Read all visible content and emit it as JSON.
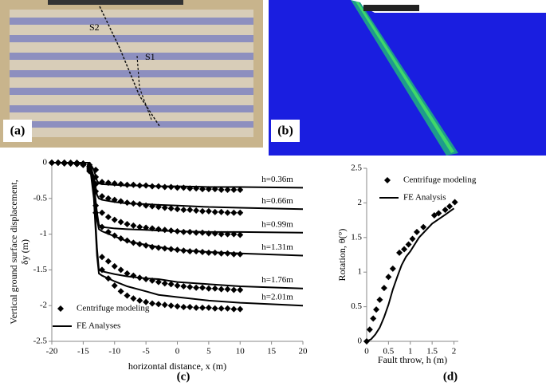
{
  "images": {
    "a": {
      "label": "(a)",
      "annotations": [
        "S2",
        "S1"
      ]
    },
    "b": {
      "label": "(b)"
    }
  },
  "chart_data": [
    {
      "type": "line",
      "panel": "(c)",
      "xlabel": "horizontal distance, x (m)",
      "ylabel": [
        "Vertical ground surface displacement,",
        "δy (m)"
      ],
      "xlim": [
        -20,
        20
      ],
      "xticks": [
        -20,
        -15,
        -10,
        -5,
        0,
        5,
        10,
        15,
        20
      ],
      "ylim": [
        -2.5,
        0
      ],
      "yticks": [
        0,
        -0.5,
        -1,
        -1.5,
        -2,
        -2.5
      ],
      "series": [
        {
          "name": "Centrifuge modeling",
          "marker": "diamond",
          "color": "#000000",
          "x": [
            -20,
            -19,
            -18,
            -17,
            -16,
            -15,
            -14,
            -13,
            -12,
            -11,
            -10,
            -9,
            -8,
            -7,
            -6,
            -5,
            -4,
            -3,
            -2,
            -1,
            0,
            1,
            2,
            3,
            4,
            5,
            6,
            7,
            8,
            9,
            10
          ],
          "curves": [
            {
              "values": [
                0,
                0,
                0,
                0,
                0,
                -0.01,
                -0.03,
                -0.1,
                -0.27,
                -0.28,
                -0.29,
                -0.3,
                -0.31,
                -0.31,
                -0.32,
                -0.32,
                -0.33,
                -0.33,
                -0.34,
                -0.34,
                -0.35,
                -0.35,
                -0.36,
                -0.36,
                -0.37,
                -0.37,
                -0.37,
                -0.38,
                -0.38,
                -0.38,
                -0.38
              ]
            },
            {
              "values": [
                0,
                0,
                0,
                -0.01,
                -0.01,
                -0.02,
                -0.05,
                -0.2,
                -0.47,
                -0.5,
                -0.52,
                -0.54,
                -0.56,
                -0.57,
                -0.58,
                -0.6,
                -0.61,
                -0.62,
                -0.63,
                -0.64,
                -0.65,
                -0.66,
                -0.66,
                -0.67,
                -0.68,
                -0.68,
                -0.69,
                -0.69,
                -0.7,
                -0.7,
                -0.7
              ]
            },
            {
              "values": [
                0,
                0,
                0,
                -0.01,
                -0.01,
                -0.02,
                -0.06,
                -0.3,
                -0.7,
                -0.76,
                -0.8,
                -0.83,
                -0.86,
                -0.88,
                -0.9,
                -0.91,
                -0.92,
                -0.93,
                -0.94,
                -0.95,
                -0.96,
                -0.97,
                -0.97,
                -0.98,
                -0.98,
                -0.99,
                -0.99,
                -1.0,
                -1.0,
                -1.0,
                -1.01
              ]
            },
            {
              "values": [
                0,
                0,
                0,
                -0.01,
                -0.01,
                -0.03,
                -0.08,
                -0.4,
                -0.9,
                -0.97,
                -1.02,
                -1.06,
                -1.09,
                -1.12,
                -1.14,
                -1.16,
                -1.18,
                -1.19,
                -1.2,
                -1.21,
                -1.22,
                -1.23,
                -1.24,
                -1.24,
                -1.25,
                -1.26,
                -1.26,
                -1.27,
                -1.27,
                -1.28,
                -1.28
              ]
            },
            {
              "values": [
                0,
                0,
                -0.01,
                -0.01,
                -0.02,
                -0.03,
                -0.1,
                -0.6,
                -1.32,
                -1.38,
                -1.45,
                -1.5,
                -1.55,
                -1.58,
                -1.61,
                -1.63,
                -1.65,
                -1.67,
                -1.69,
                -1.7,
                -1.72,
                -1.73,
                -1.74,
                -1.75,
                -1.75,
                -1.76,
                -1.76,
                -1.77,
                -1.77,
                -1.78,
                -1.78
              ]
            },
            {
              "values": [
                0,
                0,
                -0.01,
                -0.01,
                -0.02,
                -0.03,
                -0.12,
                -0.7,
                -1.5,
                -1.62,
                -1.72,
                -1.8,
                -1.86,
                -1.9,
                -1.93,
                -1.95,
                -1.97,
                -1.98,
                -1.99,
                -2.0,
                -2.01,
                -2.02,
                -2.02,
                -2.03,
                -2.03,
                -2.03,
                -2.04,
                -2.04,
                -2.04,
                -2.05,
                -2.05
              ]
            }
          ]
        },
        {
          "name": "FE Analyses",
          "marker": "line",
          "color": "#000000",
          "x": [
            -20,
            -14,
            -13.3,
            -12.8,
            -12.5,
            -12,
            -10,
            -8,
            -5,
            -3,
            0,
            5,
            10,
            20
          ],
          "curves": [
            {
              "label": "h=0.36m",
              "values": [
                0,
                0,
                -0.1,
                -0.25,
                -0.29,
                -0.3,
                -0.31,
                -0.32,
                -0.32,
                -0.33,
                -0.33,
                -0.34,
                -0.34,
                -0.35
              ]
            },
            {
              "label": "h=0.66m",
              "values": [
                0,
                0,
                -0.2,
                -0.45,
                -0.5,
                -0.52,
                -0.55,
                -0.57,
                -0.58,
                -0.59,
                -0.6,
                -0.62,
                -0.63,
                -0.65
              ]
            },
            {
              "label": "h=0.99m",
              "values": [
                0,
                0,
                -0.3,
                -0.7,
                -0.87,
                -0.9,
                -0.92,
                -0.93,
                -0.94,
                -0.95,
                -0.96,
                -0.97,
                -0.97,
                -0.98
              ]
            },
            {
              "label": "h=1.31m",
              "values": [
                0,
                0,
                -0.35,
                -0.8,
                -0.93,
                -0.96,
                -1.03,
                -1.1,
                -1.15,
                -1.18,
                -1.22,
                -1.25,
                -1.27,
                -1.3
              ]
            },
            {
              "label": "h=1.76m",
              "values": [
                0,
                0,
                -0.4,
                -1.2,
                -1.5,
                -1.52,
                -1.56,
                -1.59,
                -1.62,
                -1.63,
                -1.67,
                -1.7,
                -1.73,
                -1.76
              ]
            },
            {
              "label": "h=2.01m",
              "values": [
                0,
                0,
                -0.5,
                -1.3,
                -1.55,
                -1.58,
                -1.66,
                -1.73,
                -1.8,
                -1.85,
                -1.88,
                -1.93,
                -1.96,
                -2.0
              ]
            }
          ]
        }
      ]
    },
    {
      "type": "line",
      "panel": "(d)",
      "xlabel": "Fault throw, h (m)",
      "ylabel": [
        "Rotation, θ(°)"
      ],
      "xlim": [
        0,
        2.1
      ],
      "xticks": [
        0,
        0.5,
        1,
        1.5,
        2
      ],
      "ylim": [
        0,
        2.5
      ],
      "yticks": [
        0,
        0.5,
        1,
        1.5,
        2,
        2.5
      ],
      "series": [
        {
          "name": "Centrifuge modeling",
          "marker": "diamond",
          "color": "#000000",
          "x": [
            0,
            0.07,
            0.15,
            0.22,
            0.3,
            0.4,
            0.5,
            0.6,
            0.75,
            0.86,
            0.96,
            1.05,
            1.15,
            1.3,
            1.55,
            1.65,
            1.8,
            1.9,
            2.02
          ],
          "curves": [
            {
              "values": [
                0,
                0.17,
                0.33,
                0.46,
                0.6,
                0.77,
                0.93,
                1.05,
                1.28,
                1.33,
                1.4,
                1.48,
                1.58,
                1.65,
                1.82,
                1.85,
                1.9,
                1.95,
                2.01
              ]
            }
          ]
        },
        {
          "name": "FE Analysis",
          "marker": "line",
          "color": "#000000",
          "x": [
            0,
            0.1,
            0.2,
            0.3,
            0.4,
            0.5,
            0.6,
            0.7,
            0.8,
            0.9,
            1.0,
            1.2,
            1.5,
            1.8,
            2.0
          ],
          "curves": [
            {
              "values": [
                0,
                0.03,
                0.1,
                0.2,
                0.35,
                0.53,
                0.75,
                0.93,
                1.1,
                1.22,
                1.3,
                1.5,
                1.7,
                1.83,
                1.92
              ]
            }
          ]
        }
      ]
    }
  ]
}
